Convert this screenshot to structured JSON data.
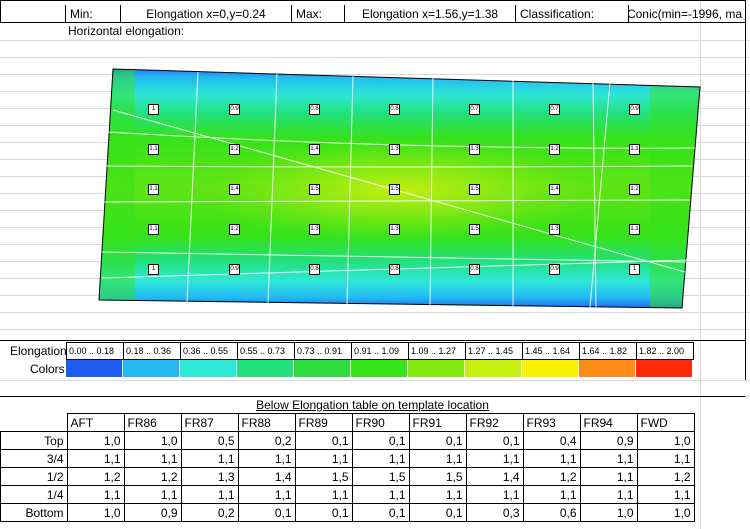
{
  "header": {
    "min_label": "Min:",
    "min_value": "Elongation x=0,y=0.24",
    "max_label": "Max:",
    "max_value": "Elongation x=1.56,y=1.38",
    "classification_label": "Classification:",
    "classification_value": "Conic(min=-1996, ma"
  },
  "plot": {
    "title": "Horizontal elongation:",
    "values": [
      [
        "1",
        "0.9",
        "0.8",
        "0.8",
        "0.7",
        "0.7",
        "0.9"
      ],
      [
        "1.1",
        "1.2",
        "1.4",
        "1.3",
        "1.3",
        "1.2",
        "1.1"
      ],
      [
        "1.1",
        "1.4",
        "1.5",
        "1.5",
        "1.5",
        "1.4",
        "1.2"
      ],
      [
        "1.1",
        "1.2",
        "1.3",
        "1.3",
        "1.5",
        "1.3",
        "1.1"
      ],
      [
        "1",
        "0.9",
        "0.8",
        "0.8",
        "0.8",
        "0.9",
        "1"
      ]
    ]
  },
  "scale": {
    "label": "Elongation",
    "colors_label": "Colors",
    "ranges": [
      "0.00 .. 0.18",
      "0.18 .. 0.36",
      "0.36 .. 0.55",
      "0.55 .. 0.73",
      "0.73 .. 0.91",
      "0.91 .. 1.09",
      "1.09 .. 1.27",
      "1.27 .. 1.45",
      "1.45 .. 1.64",
      "1.64 .. 1.82",
      "1.82 .. 2.00"
    ],
    "colors": [
      "#1c5cf0",
      "#22b8f4",
      "#2ee8d6",
      "#22e07a",
      "#2fdc3e",
      "#36e21a",
      "#80ea10",
      "#c8f010",
      "#f8f400",
      "#ff8c14",
      "#ff2a0a"
    ]
  },
  "table": {
    "caption": "Below Elongation table on template location",
    "columns": [
      "AFT",
      "FR86",
      "FR87",
      "FR88",
      "FR89",
      "FR90",
      "FR91",
      "FR92",
      "FR93",
      "FR94",
      "FWD"
    ],
    "rows": [
      {
        "label": "Top",
        "values": [
          "1,0",
          "1,0",
          "0,5",
          "0,2",
          "0,1",
          "0,1",
          "0,1",
          "0,1",
          "0,4",
          "0,9",
          "1,0"
        ]
      },
      {
        "label": "3/4",
        "values": [
          "1,1",
          "1,1",
          "1,1",
          "1,1",
          "1,1",
          "1,1",
          "1,1",
          "1,1",
          "1,1",
          "1,1",
          "1,1"
        ]
      },
      {
        "label": "1/2",
        "values": [
          "1,2",
          "1,2",
          "1,3",
          "1,4",
          "1,5",
          "1,5",
          "1,5",
          "1,4",
          "1,2",
          "1,1",
          "1,2"
        ]
      },
      {
        "label": "1/4",
        "values": [
          "1,1",
          "1,1",
          "1,1",
          "1,1",
          "1,1",
          "1,1",
          "1,1",
          "1,1",
          "1,1",
          "1,1",
          "1,1"
        ]
      },
      {
        "label": "Bottom",
        "values": [
          "1,0",
          "0,9",
          "0,2",
          "0,1",
          "0,1",
          "0,1",
          "0,1",
          "0,3",
          "0,6",
          "1,0",
          "1,0"
        ]
      }
    ]
  }
}
